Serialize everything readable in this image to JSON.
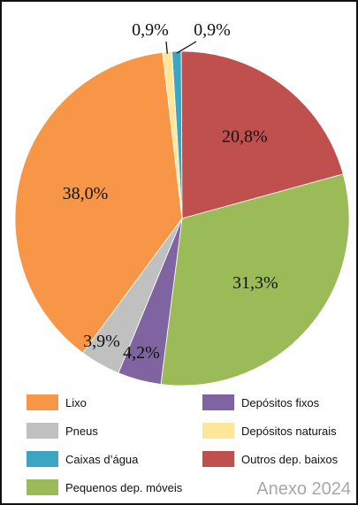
{
  "chart_data": {
    "type": "pie",
    "title": "",
    "slices": [
      {
        "label": "Caixas d'água",
        "legend_text": "Caixas d’água",
        "value": 0.9,
        "display": "0,9%",
        "color": "#3aa6c4"
      },
      {
        "label": "Outros dep. baixos",
        "legend_text": "Outros dep. baixos",
        "value": 20.8,
        "display": "20,8%",
        "color": "#c0504d"
      },
      {
        "label": "Pequenos dep. móveis",
        "legend_text": "Pequenos dep. móveis",
        "value": 31.3,
        "display": "31,3%",
        "color": "#9bbb59"
      },
      {
        "label": "Depósitos fixos",
        "legend_text": "Depósitos fixos",
        "value": 4.2,
        "display": "4,2%",
        "color": "#8064a2"
      },
      {
        "label": "Pneus",
        "legend_text": "Pneus",
        "value": 3.9,
        "display": "3,9%",
        "color": "#c0c0c0"
      },
      {
        "label": "Lixo",
        "legend_text": "Lixo",
        "value": 38.0,
        "display": "38,0%",
        "color": "#f79646"
      },
      {
        "label": "Depósitos naturais",
        "legend_text": "Depósitos naturais",
        "value": 0.9,
        "display": "0,9%",
        "color": "#ffe699"
      }
    ],
    "legend_order": [
      "Lixo",
      "Depósitos fixos",
      "Pneus",
      "Depósitos naturais",
      "Caixas d'água",
      "Outros dep. baixos",
      "Pequenos dep. móveis"
    ],
    "legend_position": "bottom"
  },
  "watermark": "Anexo 2024"
}
